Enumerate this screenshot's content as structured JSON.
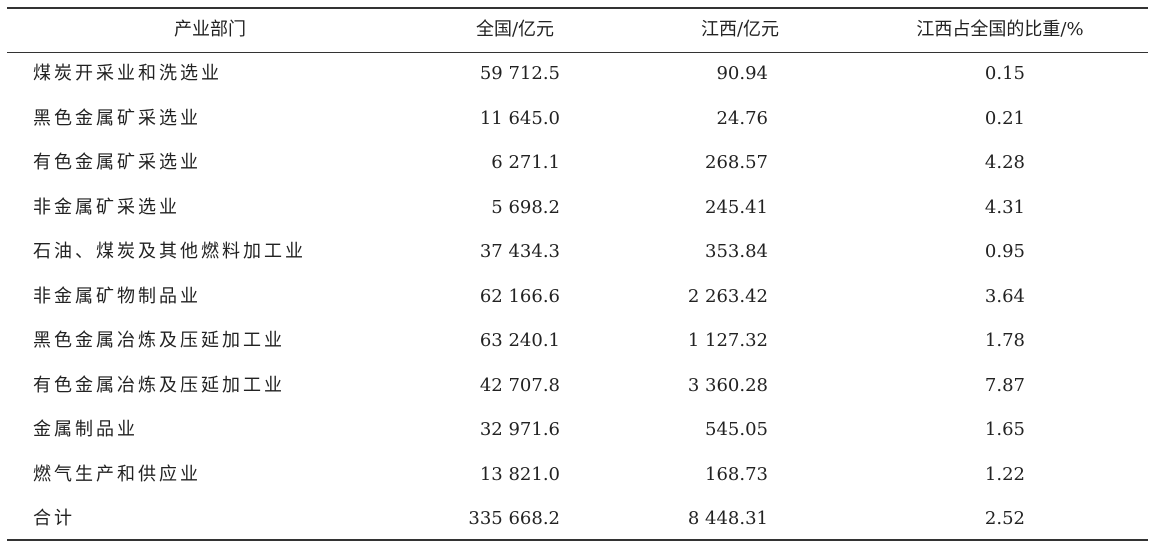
{
  "table": {
    "header": [
      "产业部门",
      "全国/亿元",
      "江西/亿元",
      "江西占全国的比重/%"
    ],
    "rows": [
      [
        "煤炭开采业和洗选业",
        "59 712.5",
        "90.94",
        "0.15"
      ],
      [
        "黑色金属矿采选业",
        "11 645.0",
        "24.76",
        "0.21"
      ],
      [
        "有色金属矿采选业",
        "6 271.1",
        "268.57",
        "4.28"
      ],
      [
        "非金属矿采选业",
        "5 698.2",
        "245.41",
        "4.31"
      ],
      [
        "石油、煤炭及其他燃料加工业",
        "37 434.3",
        "353.84",
        "0.95"
      ],
      [
        "非金属矿物制品业",
        "62 166.6",
        "2 263.42",
        "3.64"
      ],
      [
        "黑色金属冶炼及压延加工业",
        "63 240.1",
        "1 127.32",
        "1.78"
      ],
      [
        "有色金属冶炼及压延加工业",
        "42 707.8",
        "3 360.28",
        "7.87"
      ],
      [
        "金属制品业",
        "32 971.6",
        "545.05",
        "1.65"
      ],
      [
        "燃气生产和供应业",
        "13 821.0",
        "168.73",
        "1.22"
      ],
      [
        "合计",
        "335 668.2",
        "8 448.31",
        "2.52"
      ]
    ]
  }
}
